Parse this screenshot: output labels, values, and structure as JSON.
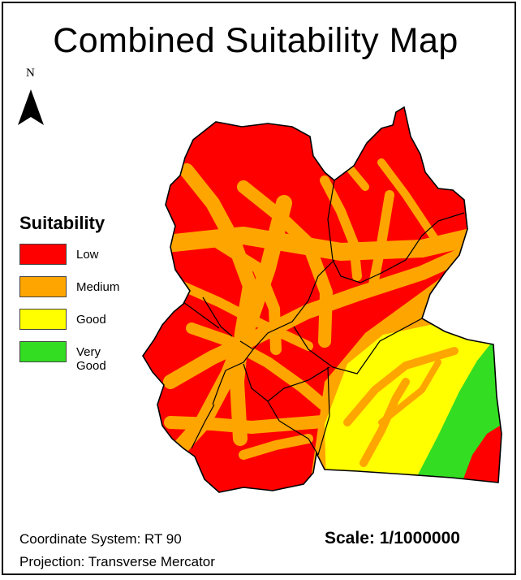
{
  "map": {
    "title": "Combined Suitability Map",
    "north_label": "N",
    "legend": {
      "title": "Suitability",
      "items": [
        {
          "label": "Low",
          "color": "#ff0000"
        },
        {
          "label": "Medium",
          "color": "#ffa500"
        },
        {
          "label": "Good",
          "color": "#ffff00"
        },
        {
          "label": "Very Good",
          "color": "#33dd22"
        }
      ]
    },
    "coordinate_system": "Coordinate System: RT 90",
    "projection": "Projection: Transverse Mercator",
    "scale": "Scale: 1/1000000"
  }
}
